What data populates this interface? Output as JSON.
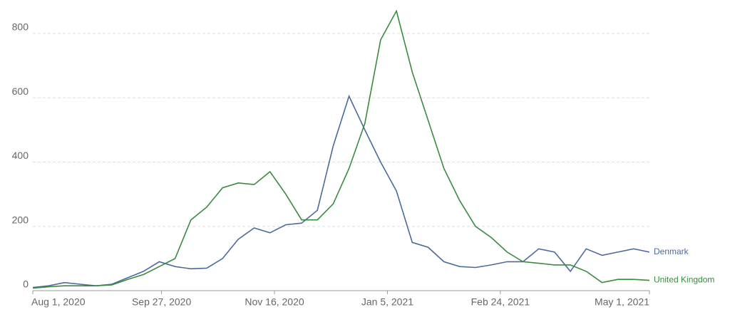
{
  "chart_data": {
    "type": "line",
    "x": [
      "2020-08-01",
      "2020-08-08",
      "2020-08-15",
      "2020-08-22",
      "2020-08-29",
      "2020-09-05",
      "2020-09-12",
      "2020-09-19",
      "2020-09-26",
      "2020-10-03",
      "2020-10-10",
      "2020-10-17",
      "2020-10-24",
      "2020-10-31",
      "2020-11-07",
      "2020-11-14",
      "2020-11-21",
      "2020-11-28",
      "2020-12-05",
      "2020-12-12",
      "2020-12-19",
      "2020-12-26",
      "2021-01-02",
      "2021-01-09",
      "2021-01-16",
      "2021-01-23",
      "2021-01-30",
      "2021-02-06",
      "2021-02-13",
      "2021-02-20",
      "2021-02-27",
      "2021-03-06",
      "2021-03-13",
      "2021-03-20",
      "2021-03-27",
      "2021-04-03",
      "2021-04-10",
      "2021-04-17",
      "2021-04-24",
      "2021-05-01"
    ],
    "series": [
      {
        "name": "Denmark",
        "color": "#4c6a9c",
        "values": [
          10,
          15,
          25,
          20,
          15,
          20,
          40,
          60,
          90,
          75,
          68,
          70,
          100,
          160,
          195,
          180,
          205,
          210,
          250,
          450,
          605,
          500,
          400,
          310,
          150,
          135,
          90,
          75,
          72,
          80,
          90,
          90,
          130,
          120,
          60,
          130,
          110,
          120,
          130,
          120
        ]
      },
      {
        "name": "United Kingdom",
        "color": "#3a8a3f",
        "values": [
          8,
          12,
          15,
          15,
          15,
          18,
          35,
          50,
          75,
          100,
          220,
          260,
          320,
          335,
          330,
          370,
          300,
          220,
          220,
          270,
          380,
          520,
          780,
          870,
          680,
          530,
          380,
          280,
          200,
          165,
          120,
          90,
          85,
          80,
          80,
          60,
          25,
          35,
          35,
          32
        ]
      }
    ],
    "xlim": [
      "2020-08-01",
      "2021-05-01"
    ],
    "xticks": [
      {
        "value": "2020-08-01",
        "label": "Aug 1, 2020"
      },
      {
        "value": "2020-09-27",
        "label": "Sep 27, 2020"
      },
      {
        "value": "2020-11-16",
        "label": "Nov 16, 2020"
      },
      {
        "value": "2021-01-05",
        "label": "Jan 5, 2021"
      },
      {
        "value": "2021-02-24",
        "label": "Feb 24, 2021"
      },
      {
        "value": "2021-05-01",
        "label": "May 1, 2021"
      }
    ],
    "ylim": [
      0,
      800
    ],
    "yticks": [
      0,
      200,
      400,
      600,
      800
    ],
    "grid": true
  }
}
